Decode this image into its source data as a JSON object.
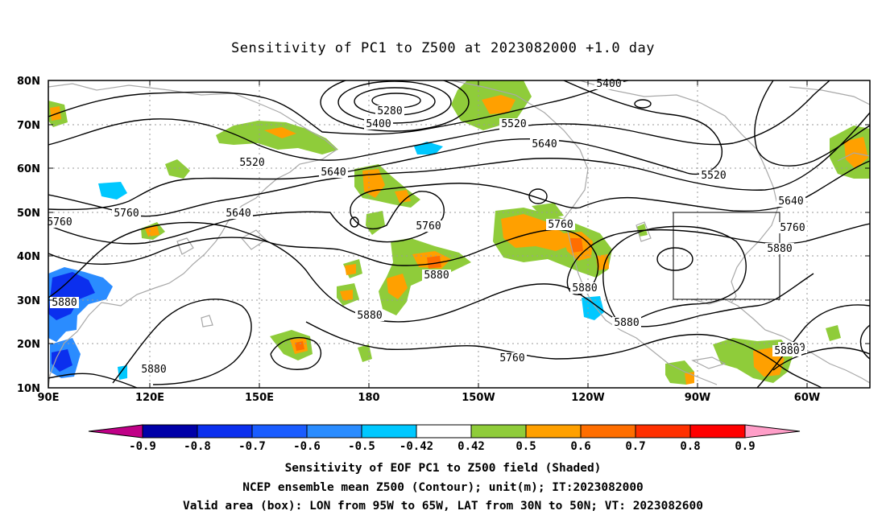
{
  "title": "Sensitivity of PC1 to Z500 at 2023082000 +1.0 day",
  "map": {
    "lon_range": [
      90,
      310
    ],
    "lat_range": [
      10,
      80
    ],
    "lat_labels": [
      "80N",
      "70N",
      "60N",
      "50N",
      "40N",
      "30N",
      "20N",
      "10N"
    ],
    "lon_labels": [
      "90E",
      "120E",
      "150E",
      "180",
      "150W",
      "120W",
      "90W",
      "60W"
    ],
    "contour_labels": [
      "5400",
      "5280",
      "5400",
      "5520",
      "5640",
      "5520",
      "5640",
      "5520",
      "5640",
      "5760",
      "5640",
      "5760",
      "5760",
      "5760",
      "5760",
      "5880",
      "5880",
      "5880",
      "5880",
      "5880",
      "5880",
      "5760",
      "5880",
      "5880",
      "5880"
    ],
    "valid_box": {
      "lon_west": -95,
      "lon_east": -65,
      "lat_south": 30,
      "lat_north": 50
    }
  },
  "colorbar": {
    "labels": [
      "-0.9",
      "-0.8",
      "-0.7",
      "-0.6",
      "-0.5",
      "-0.42",
      "0.42",
      "0.5",
      "0.6",
      "0.7",
      "0.8",
      "0.9"
    ],
    "colors": [
      "#c00087",
      "#0000a8",
      "#0b2fee",
      "#1a5cff",
      "#2a8cff",
      "#00c8ff",
      "#ffffff",
      "#8fcc3a",
      "#ffa000",
      "#ff6e00",
      "#ff3000",
      "#ff0000",
      "#ff9ec8"
    ]
  },
  "footer": {
    "line1": "Sensitivity of EOF PC1 to Z500 field (Shaded)",
    "line2": "NCEP ensemble mean Z500 (Contour); unit(m); IT:2023082000",
    "line3": "Valid area (box): LON from 95W to 65W, LAT from 30N to 50N; VT: 2023082600"
  }
}
